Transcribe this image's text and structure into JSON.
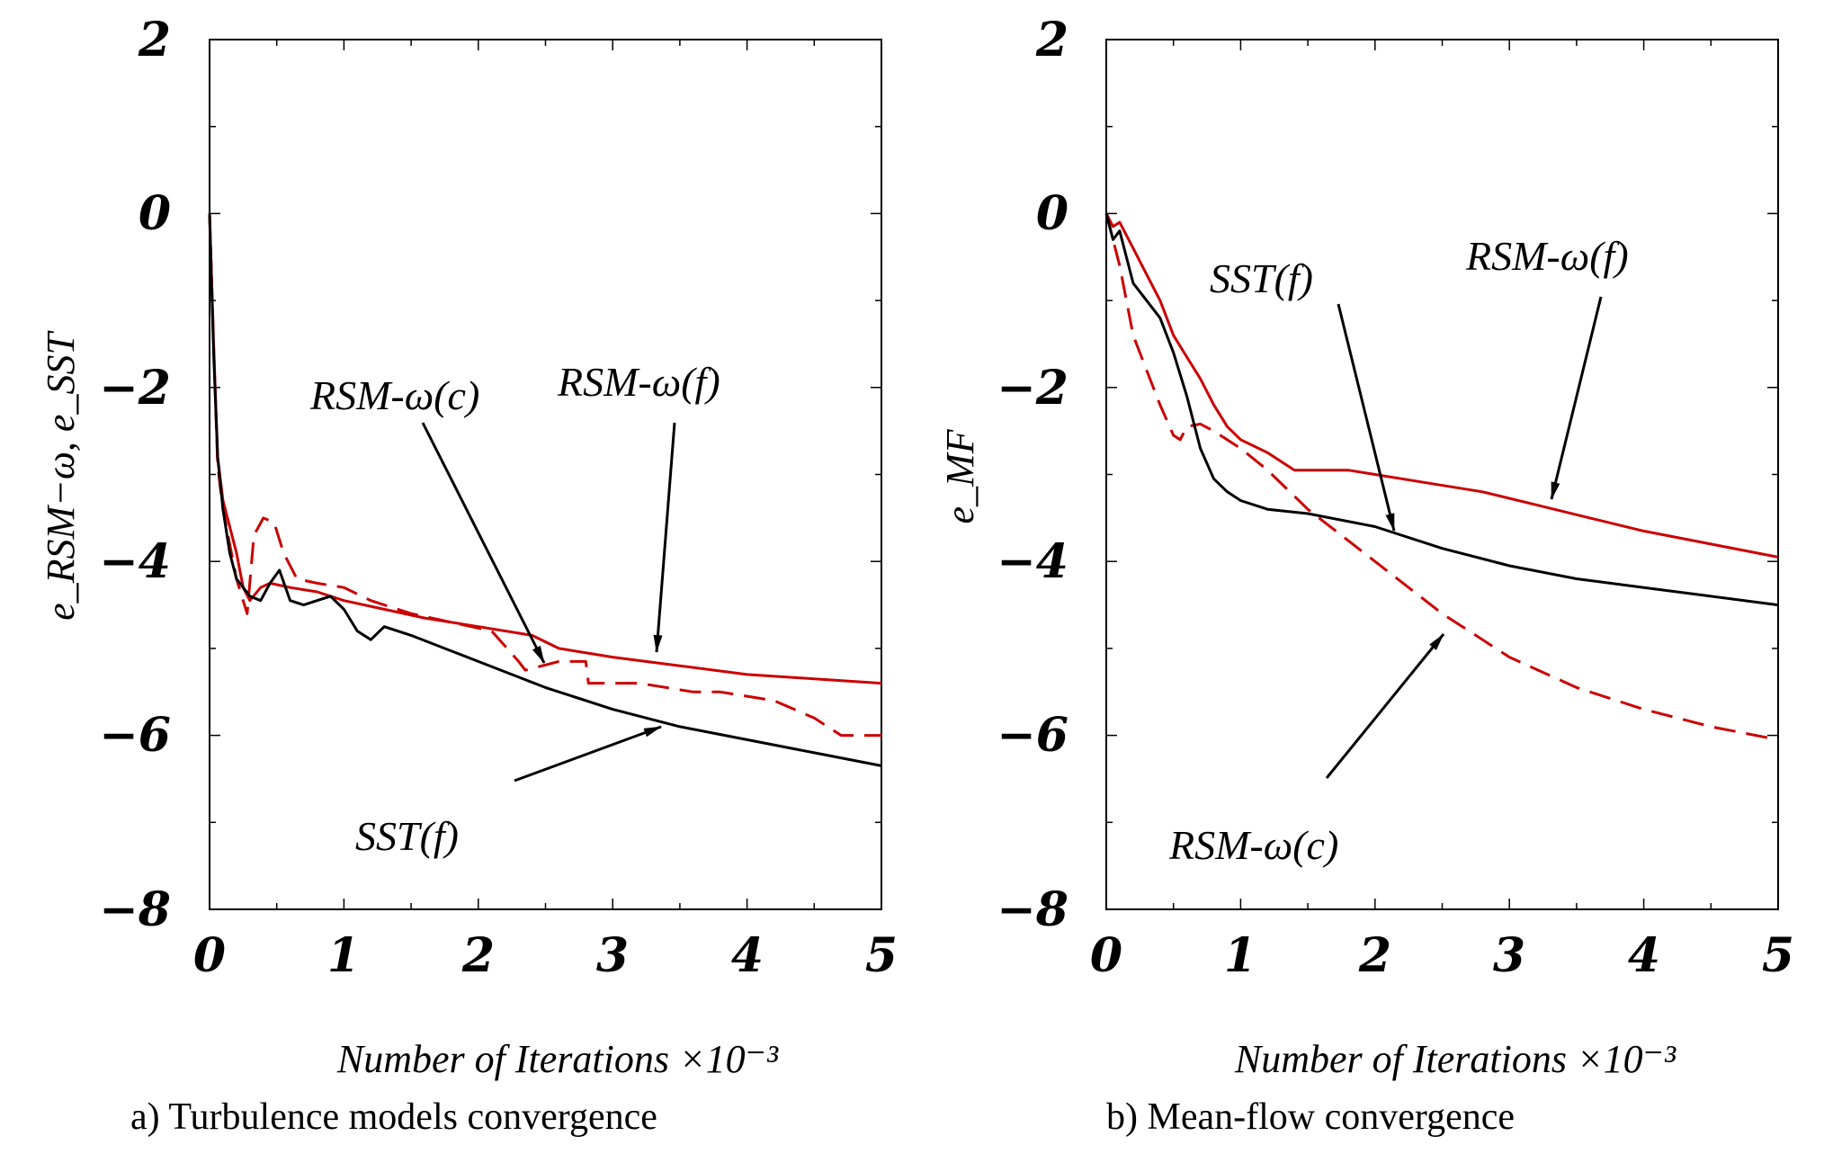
{
  "chart_data": [
    {
      "type": "line",
      "xlabel": "Number of Iterations ×10⁻³",
      "ylabel": "e_RSM−ω, e_SST",
      "caption": "a) Turbulence models convergence",
      "xlim": [
        0,
        5
      ],
      "ylim": [
        -8,
        2
      ],
      "xticks": [
        "0",
        "1",
        "2",
        "3",
        "4",
        "5"
      ],
      "yticks": [
        "2",
        "0",
        "−2",
        "−4",
        "−6",
        "−8"
      ],
      "grid": false,
      "series": [
        {
          "name": "RSM-ω(f)",
          "color": "#cc0000",
          "dash": "solid",
          "x": [
            0,
            0.03,
            0.06,
            0.1,
            0.15,
            0.2,
            0.25,
            0.3,
            0.38,
            0.45,
            0.6,
            0.8,
            1.0,
            1.3,
            1.6,
            2.0,
            2.4,
            2.6,
            3.0,
            3.5,
            4.0,
            4.5,
            5.0
          ],
          "y": [
            0,
            -1.5,
            -2.8,
            -3.3,
            -3.6,
            -3.9,
            -4.3,
            -4.45,
            -4.3,
            -4.25,
            -4.3,
            -4.35,
            -4.45,
            -4.55,
            -4.65,
            -4.75,
            -4.85,
            -5.0,
            -5.1,
            -5.2,
            -5.3,
            -5.35,
            -5.4
          ]
        },
        {
          "name": "RSM-ω(c)",
          "color": "#cc0000",
          "dash": "dashed",
          "x": [
            0,
            0.03,
            0.06,
            0.1,
            0.15,
            0.2,
            0.28,
            0.33,
            0.4,
            0.48,
            0.55,
            0.65,
            0.8,
            1.0,
            1.2,
            1.5,
            1.8,
            2.1,
            2.3,
            2.35,
            2.6,
            2.8,
            2.82,
            3.2,
            3.6,
            3.8,
            4.2,
            4.5,
            4.7,
            5.0
          ],
          "y": [
            0,
            -1.5,
            -2.9,
            -3.4,
            -3.8,
            -4.2,
            -4.6,
            -3.7,
            -3.5,
            -3.55,
            -3.9,
            -4.2,
            -4.25,
            -4.3,
            -4.45,
            -4.6,
            -4.7,
            -4.8,
            -5.15,
            -5.25,
            -5.15,
            -5.15,
            -5.4,
            -5.4,
            -5.5,
            -5.5,
            -5.6,
            -5.8,
            -6.0,
            -6.0
          ]
        },
        {
          "name": "SST(f)",
          "color": "#000000",
          "dash": "solid",
          "x": [
            0,
            0.03,
            0.06,
            0.1,
            0.15,
            0.2,
            0.25,
            0.3,
            0.38,
            0.45,
            0.52,
            0.6,
            0.7,
            0.8,
            0.9,
            1.0,
            1.1,
            1.2,
            1.3,
            1.5,
            2.0,
            2.5,
            3.0,
            3.5,
            4.0,
            4.5,
            5.0
          ],
          "y": [
            0,
            -1.6,
            -2.8,
            -3.4,
            -3.9,
            -4.2,
            -4.3,
            -4.4,
            -4.45,
            -4.25,
            -4.1,
            -4.45,
            -4.5,
            -4.45,
            -4.4,
            -4.55,
            -4.8,
            -4.9,
            -4.75,
            -4.85,
            -5.15,
            -5.45,
            -5.7,
            -5.9,
            -6.05,
            -6.2,
            -6.35
          ]
        }
      ],
      "annotations": [
        {
          "text": "RSM-ω(c)"
        },
        {
          "text": "RSM-ω(f)"
        },
        {
          "text": "SST(f)"
        }
      ]
    },
    {
      "type": "line",
      "xlabel": "Number of Iterations ×10⁻³",
      "ylabel": "e_MF",
      "caption": "b) Mean-flow convergence",
      "xlim": [
        0,
        5
      ],
      "ylim": [
        -8,
        2
      ],
      "xticks": [
        "0",
        "1",
        "2",
        "3",
        "4",
        "5"
      ],
      "yticks": [
        "2",
        "0",
        "−2",
        "−4",
        "−6",
        "−8"
      ],
      "grid": false,
      "series": [
        {
          "name": "RSM-ω(f)",
          "color": "#cc0000",
          "dash": "solid",
          "x": [
            0,
            0.05,
            0.1,
            0.2,
            0.3,
            0.4,
            0.5,
            0.6,
            0.7,
            0.8,
            0.9,
            1.0,
            1.2,
            1.4,
            1.6,
            1.8,
            2.0,
            2.4,
            2.8,
            3.2,
            3.6,
            4.0,
            4.5,
            5.0
          ],
          "y": [
            0,
            -0.15,
            -0.1,
            -0.4,
            -0.7,
            -1.0,
            -1.4,
            -1.65,
            -1.9,
            -2.2,
            -2.45,
            -2.6,
            -2.75,
            -2.95,
            -2.95,
            -2.95,
            -3.0,
            -3.1,
            -3.2,
            -3.35,
            -3.5,
            -3.65,
            -3.8,
            -3.95
          ]
        },
        {
          "name": "RSM-ω(c)",
          "color": "#cc0000",
          "dash": "dashed",
          "x": [
            0,
            0.05,
            0.1,
            0.15,
            0.2,
            0.3,
            0.4,
            0.5,
            0.55,
            0.6,
            0.7,
            0.8,
            1.0,
            1.2,
            1.5,
            2.0,
            2.5,
            3.0,
            3.5,
            4.0,
            4.5,
            5.0
          ],
          "y": [
            0,
            -0.3,
            -0.6,
            -1.0,
            -1.4,
            -1.8,
            -2.2,
            -2.55,
            -2.6,
            -2.45,
            -2.42,
            -2.5,
            -2.7,
            -2.95,
            -3.4,
            -4.0,
            -4.6,
            -5.1,
            -5.45,
            -5.7,
            -5.9,
            -6.05
          ]
        },
        {
          "name": "SST(f)",
          "color": "#000000",
          "dash": "solid",
          "x": [
            0,
            0.05,
            0.1,
            0.15,
            0.2,
            0.3,
            0.4,
            0.5,
            0.6,
            0.7,
            0.8,
            0.9,
            1.0,
            1.2,
            1.5,
            2.0,
            2.5,
            3.0,
            3.5,
            4.0,
            4.5,
            5.0
          ],
          "y": [
            0,
            -0.3,
            -0.2,
            -0.5,
            -0.8,
            -1.0,
            -1.2,
            -1.6,
            -2.1,
            -2.7,
            -3.05,
            -3.2,
            -3.3,
            -3.4,
            -3.45,
            -3.6,
            -3.85,
            -4.05,
            -4.2,
            -4.3,
            -4.4,
            -4.5
          ]
        }
      ],
      "annotations": [
        {
          "text": "SST(f)"
        },
        {
          "text": "RSM-ω(f)"
        },
        {
          "text": "RSM-ω(c)"
        }
      ]
    }
  ]
}
